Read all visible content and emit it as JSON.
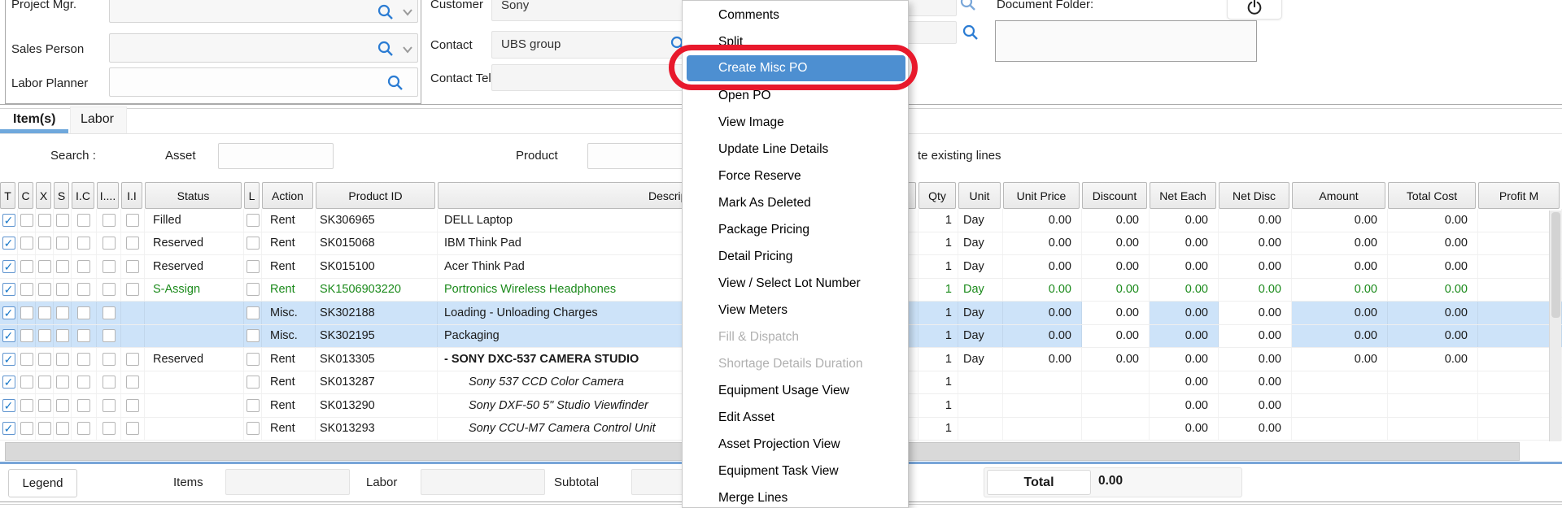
{
  "header": {
    "project_mgr_label": "Project Mgr.",
    "sales_person_label": "Sales Person",
    "labor_planner_label": "Labor Planner",
    "customer_label": "Customer",
    "customer_value": "Sony",
    "contact_label": "Contact",
    "contact_value": "UBS group",
    "contact_tel_label": "Contact Tel #",
    "document_folder_label": "Document Folder:"
  },
  "tabs": {
    "items_label": "Item(s)",
    "labor_label": "Labor"
  },
  "search_bar": {
    "search_label": "Search :",
    "asset_label": "Asset",
    "product_label": "Product",
    "right_text": "te existing lines"
  },
  "context_menu": {
    "items": [
      {
        "label": "Comments",
        "state": "normal"
      },
      {
        "label": "Split",
        "state": "normal"
      },
      {
        "label": "Create Misc PO",
        "state": "highlighted"
      },
      {
        "label": "Open PO",
        "state": "normal"
      },
      {
        "label": "View Image",
        "state": "normal"
      },
      {
        "label": "Update Line Details",
        "state": "normal"
      },
      {
        "label": "Force Reserve",
        "state": "normal"
      },
      {
        "label": "Mark As Deleted",
        "state": "normal"
      },
      {
        "label": "Package Pricing",
        "state": "normal"
      },
      {
        "label": "Detail Pricing",
        "state": "normal"
      },
      {
        "label": "View / Select Lot Number",
        "state": "normal"
      },
      {
        "label": "View Meters",
        "state": "normal"
      },
      {
        "label": "Fill & Dispatch",
        "state": "disabled"
      },
      {
        "label": "Shortage Details Duration",
        "state": "disabled"
      },
      {
        "label": "Equipment Usage View",
        "state": "normal"
      },
      {
        "label": "Edit Asset",
        "state": "normal"
      },
      {
        "label": "Asset Projection View",
        "state": "normal"
      },
      {
        "label": "Equipment Task View",
        "state": "normal"
      },
      {
        "label": "Merge Lines",
        "state": "normal"
      }
    ]
  },
  "table": {
    "columns": [
      "T",
      "C",
      "X",
      "S",
      "I.C",
      "I....",
      "I.I",
      "Status",
      "L",
      "Action",
      "Product ID",
      "Description",
      "Qty",
      "Unit",
      "Unit Price",
      "Discount",
      "Net Each",
      "Net Disc",
      "Amount",
      "Total Cost",
      "Profit M"
    ],
    "rows": [
      {
        "status": "Filled",
        "action": "Rent",
        "product_id": "SK306965",
        "description": "DELL Laptop",
        "qty": "1",
        "unit": "Day",
        "unit_price": "0.00",
        "discount": "0.00",
        "net_each": "0.00",
        "net_disc": "0.00",
        "amount": "0.00",
        "total_cost": "0.00",
        "profit": "",
        "checked": true,
        "empty_flags": 6,
        "style": "normal"
      },
      {
        "status": "Reserved",
        "action": "Rent",
        "product_id": "SK015068",
        "description": "IBM Think Pad",
        "qty": "1",
        "unit": "Day",
        "unit_price": "0.00",
        "discount": "0.00",
        "net_each": "0.00",
        "net_disc": "0.00",
        "amount": "0.00",
        "total_cost": "0.00",
        "profit": "",
        "checked": true,
        "empty_flags": 6,
        "style": "normal"
      },
      {
        "status": "Reserved",
        "action": "Rent",
        "product_id": "SK015100",
        "description": "Acer Think Pad",
        "qty": "1",
        "unit": "Day",
        "unit_price": "0.00",
        "discount": "0.00",
        "net_each": "0.00",
        "net_disc": "0.00",
        "amount": "0.00",
        "total_cost": "0.00",
        "profit": "",
        "checked": true,
        "empty_flags": 6,
        "style": "normal"
      },
      {
        "status": "S-Assign",
        "action": "Rent",
        "product_id": "SK1506903220",
        "description": "Portronics Wireless Headphones",
        "qty": "1",
        "unit": "Day",
        "unit_price": "0.00",
        "discount": "0.00",
        "net_each": "0.00",
        "net_disc": "0.00",
        "amount": "0.00",
        "total_cost": "0.00",
        "profit": "",
        "checked": true,
        "empty_flags": 6,
        "style": "green"
      },
      {
        "status": "",
        "action": "Misc.",
        "product_id": "SK302188",
        "description": "Loading - Unloading Charges",
        "qty": "1",
        "unit": "Day",
        "unit_price": "0.00",
        "discount": "0.00",
        "net_each": "0.00",
        "net_disc": "0.00",
        "amount": "0.00",
        "total_cost": "0.00",
        "profit": "",
        "checked": true,
        "empty_flags": 5,
        "style": "blue"
      },
      {
        "status": "",
        "action": "Misc.",
        "product_id": "SK302195",
        "description": "Packaging",
        "qty": "1",
        "unit": "Day",
        "unit_price": "0.00",
        "discount": "0.00",
        "net_each": "0.00",
        "net_disc": "0.00",
        "amount": "0.00",
        "total_cost": "0.00",
        "profit": "",
        "checked": true,
        "empty_flags": 5,
        "style": "blue"
      },
      {
        "status": "Reserved",
        "action": "Rent",
        "product_id": "SK013305",
        "description": "- SONY DXC-537 CAMERA STUDIO",
        "qty": "1",
        "unit": "Day",
        "unit_price": "0.00",
        "discount": "0.00",
        "net_each": "0.00",
        "net_disc": "0.00",
        "amount": "0.00",
        "total_cost": "0.00",
        "profit": "",
        "checked": true,
        "empty_flags": 6,
        "style": "bold"
      },
      {
        "status": "",
        "action": "Rent",
        "product_id": "SK013287",
        "description": "Sony 537 CCD Color Camera",
        "qty": "1",
        "unit": "",
        "unit_price": "",
        "discount": "",
        "net_each": "0.00",
        "net_disc": "0.00",
        "amount": "",
        "total_cost": "",
        "profit": "",
        "checked": true,
        "empty_flags": 6,
        "style": "sub"
      },
      {
        "status": "",
        "action": "Rent",
        "product_id": "SK013290",
        "description": "Sony DXF-50 5\" Studio Viewfinder",
        "qty": "1",
        "unit": "",
        "unit_price": "",
        "discount": "",
        "net_each": "0.00",
        "net_disc": "0.00",
        "amount": "",
        "total_cost": "",
        "profit": "",
        "checked": true,
        "empty_flags": 6,
        "style": "sub"
      },
      {
        "status": "",
        "action": "Rent",
        "product_id": "SK013293",
        "description": "Sony CCU-M7 Camera Control Unit",
        "qty": "1",
        "unit": "",
        "unit_price": "",
        "discount": "",
        "net_each": "0.00",
        "net_disc": "0.00",
        "amount": "",
        "total_cost": "",
        "profit": "",
        "checked": true,
        "empty_flags": 6,
        "style": "sub"
      }
    ]
  },
  "footer": {
    "legend_label": "Legend",
    "items_label": "Items",
    "labor_label": "Labor",
    "subtotal_label": "Subtotal",
    "total_label": "Total",
    "total_value": "0.00"
  },
  "colors": {
    "tab_accent": "#6fa8dc",
    "row_highlight_blue": "#cde3f9",
    "assigned_green": "#1b8a1b",
    "menu_highlight_blue": "#4d8fd1",
    "annotation_red": "#e8192c",
    "search_icon_blue": "#2b7cd3"
  }
}
